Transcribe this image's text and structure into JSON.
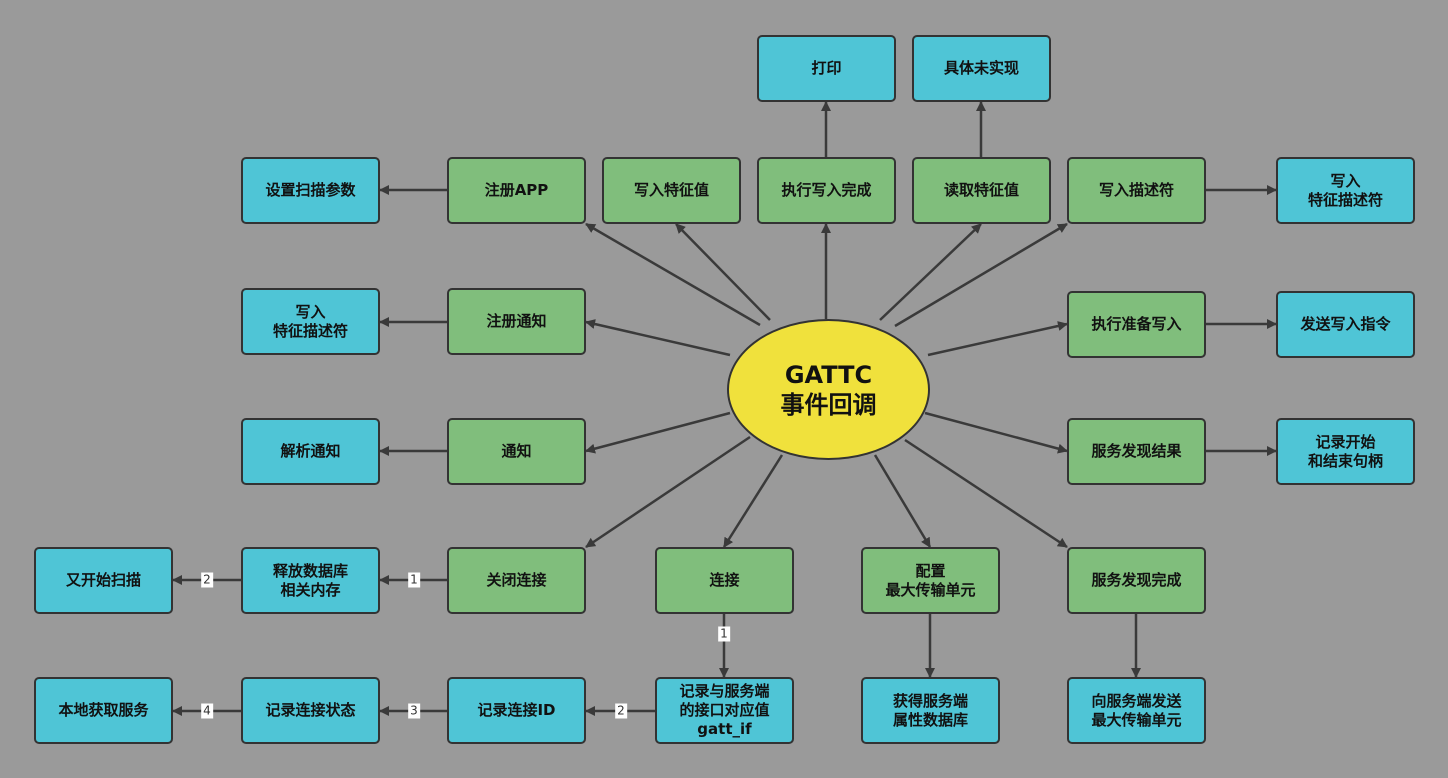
{
  "center": {
    "title": "GATTC\n事件回调"
  },
  "nodes": {
    "print": "打印",
    "not_implemented": "具体未实现",
    "set_scan_params": "设置扫描参数",
    "register_app": "注册APP",
    "write_char": "写入特征值",
    "exec_write_complete": "执行写入完成",
    "read_char": "读取特征值",
    "write_descr": "写入描述符",
    "write_char_descr_right": "写入\n特征描述符",
    "write_char_descr_left": "写入\n特征描述符",
    "register_notify": "注册通知",
    "exec_prepare_write": "执行准备写入",
    "send_write_cmd": "发送写入指令",
    "parse_notify": "解析通知",
    "notify": "通知",
    "search_result": "服务发现结果",
    "record_handles": "记录开始\n和结束句柄",
    "restart_scan": "又开始扫描",
    "free_db_mem": "释放数据库\n相关内存",
    "close": "关闭连接",
    "connect": "连接",
    "config_mtu": "配置\n最大传输单元",
    "search_complete": "服务发现完成",
    "local_get_service": "本地获取服务",
    "record_conn_state": "记录连接状态",
    "record_conn_id": "记录连接ID",
    "record_gatt_if": "记录与服务端\n的接口对应值\ngatt_if",
    "get_server_db": "获得服务端\n属性数据库",
    "send_mtu": "向服务端发送\n最大传输单元"
  },
  "edge_labels": {
    "close_to_free": "1",
    "free_to_restart": "2",
    "connect_to_gattif": "1",
    "gattif_to_connid": "2",
    "connid_to_state": "3",
    "state_to_local": "4"
  },
  "colors": {
    "background": "#9a9a9a",
    "center_fill": "#f0e13c",
    "event_fill": "#80be7c",
    "action_fill": "#4fc5d6",
    "line": "#3a3a3a"
  }
}
